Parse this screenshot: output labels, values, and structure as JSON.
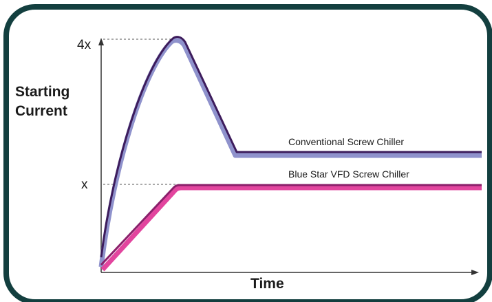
{
  "diagram": {
    "y_axis_label_line1": "Starting",
    "y_axis_label_line2": "Current",
    "x_axis_label": "Time",
    "tick_4x": "4x",
    "tick_x": "x",
    "series": [
      {
        "name": "Conventional Screw Chiller",
        "color": "#3d1c5c",
        "fill_color": "#8f92cc"
      },
      {
        "name": "Blue Star VFD Screw Chiller",
        "color": "#8a1f6a",
        "fill_color": "#e2459e"
      }
    ],
    "frame_color": "#133f3f"
  }
}
